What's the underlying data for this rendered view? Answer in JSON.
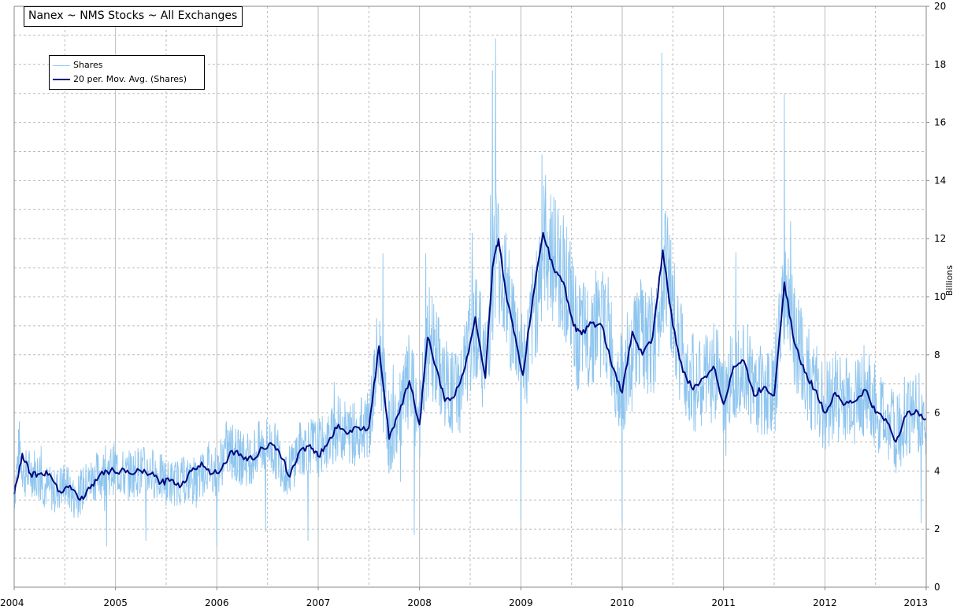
{
  "chart_data": {
    "type": "line",
    "title": "Nanex ~ NMS Stocks ~ All Exchanges",
    "ylabel": "Billions",
    "xlim": [
      2004,
      2013
    ],
    "ylim": [
      0,
      20
    ],
    "x_ticks": [
      "2004",
      "2005",
      "2006",
      "2007",
      "2008",
      "2009",
      "2010",
      "2011",
      "2012",
      "2013"
    ],
    "y_ticks": [
      "0",
      "2",
      "4",
      "6",
      "8",
      "10",
      "12",
      "14",
      "16",
      "18",
      "20"
    ],
    "grid": true,
    "legend_position": "top-left",
    "colors": {
      "shares": "#8EC5EE",
      "moving_average": "#000A80",
      "grid": "#BBBBBB"
    },
    "series": [
      {
        "name": "Shares",
        "style": "thin-noisy",
        "values": [
          [
            2004.0,
            3.2
          ],
          [
            2004.05,
            4.8
          ],
          [
            2004.1,
            3.9
          ],
          [
            2004.2,
            4.0
          ],
          [
            2004.3,
            3.5
          ],
          [
            2004.4,
            3.3
          ],
          [
            2004.5,
            3.6
          ],
          [
            2004.6,
            3.0
          ],
          [
            2004.7,
            3.5
          ],
          [
            2004.8,
            3.8
          ],
          [
            2004.9,
            4.0
          ],
          [
            2005.0,
            4.1
          ],
          [
            2005.1,
            3.8
          ],
          [
            2005.2,
            4.0
          ],
          [
            2005.3,
            4.0
          ],
          [
            2005.4,
            3.9
          ],
          [
            2005.5,
            3.6
          ],
          [
            2005.6,
            3.6
          ],
          [
            2005.7,
            3.7
          ],
          [
            2005.8,
            3.5
          ],
          [
            2005.9,
            4.2
          ],
          [
            2006.0,
            4.0
          ],
          [
            2006.1,
            4.8
          ],
          [
            2006.2,
            4.5
          ],
          [
            2006.3,
            4.4
          ],
          [
            2006.4,
            4.7
          ],
          [
            2006.5,
            4.9
          ],
          [
            2006.6,
            4.6
          ],
          [
            2006.7,
            3.9
          ],
          [
            2006.8,
            4.7
          ],
          [
            2006.9,
            4.9
          ],
          [
            2007.0,
            4.8
          ],
          [
            2007.1,
            5.0
          ],
          [
            2007.2,
            5.5
          ],
          [
            2007.3,
            5.3
          ],
          [
            2007.4,
            5.4
          ],
          [
            2007.5,
            5.6
          ],
          [
            2007.6,
            8.2
          ],
          [
            2007.7,
            5.2
          ],
          [
            2007.8,
            5.8
          ],
          [
            2007.9,
            7.1
          ],
          [
            2008.0,
            5.7
          ],
          [
            2008.1,
            8.6
          ],
          [
            2008.2,
            7.5
          ],
          [
            2008.3,
            6.6
          ],
          [
            2008.4,
            6.8
          ],
          [
            2008.5,
            8.3
          ],
          [
            2008.55,
            9.3
          ],
          [
            2008.65,
            7.5
          ],
          [
            2008.75,
            11.8
          ],
          [
            2008.85,
            10.2
          ],
          [
            2008.95,
            8.6
          ],
          [
            2009.05,
            7.6
          ],
          [
            2009.15,
            10.0
          ],
          [
            2009.25,
            12.0
          ],
          [
            2009.35,
            11.2
          ],
          [
            2009.45,
            10.6
          ],
          [
            2009.55,
            8.6
          ],
          [
            2009.65,
            8.6
          ],
          [
            2009.75,
            9.2
          ],
          [
            2009.85,
            9.0
          ],
          [
            2009.95,
            7.2
          ],
          [
            2010.05,
            6.9
          ],
          [
            2010.15,
            8.9
          ],
          [
            2010.25,
            8.2
          ],
          [
            2010.35,
            8.8
          ],
          [
            2010.42,
            11.6
          ],
          [
            2010.55,
            8.4
          ],
          [
            2010.65,
            7.4
          ],
          [
            2010.75,
            6.8
          ],
          [
            2010.85,
            7.2
          ],
          [
            2010.95,
            7.6
          ],
          [
            2011.0,
            6.3
          ],
          [
            2011.1,
            7.5
          ],
          [
            2011.2,
            8.0
          ],
          [
            2011.3,
            6.8
          ],
          [
            2011.4,
            6.9
          ],
          [
            2011.5,
            6.6
          ],
          [
            2011.6,
            10.5
          ],
          [
            2011.7,
            8.5
          ],
          [
            2011.8,
            7.5
          ],
          [
            2011.9,
            6.8
          ],
          [
            2012.0,
            6.2
          ],
          [
            2012.1,
            6.7
          ],
          [
            2012.2,
            6.4
          ],
          [
            2012.3,
            6.5
          ],
          [
            2012.4,
            6.8
          ],
          [
            2012.5,
            6.1
          ],
          [
            2012.6,
            5.8
          ],
          [
            2012.7,
            5.2
          ],
          [
            2012.8,
            5.9
          ],
          [
            2012.9,
            6.1
          ],
          [
            2013.0,
            5.8
          ]
        ],
        "spikes": [
          [
            2008.75,
            18.9
          ],
          [
            2008.72,
            17.8
          ],
          [
            2009.21,
            14.9
          ],
          [
            2010.39,
            18.4
          ],
          [
            2011.6,
            17.0
          ],
          [
            2011.66,
            12.6
          ],
          [
            2007.64,
            11.5
          ],
          [
            2008.06,
            11.5
          ],
          [
            2008.52,
            12.2
          ],
          [
            2010.0,
            12.1
          ],
          [
            2009.0,
            2.3
          ],
          [
            2010.0,
            2.2
          ],
          [
            2004.91,
            1.4
          ],
          [
            2005.3,
            1.6
          ],
          [
            2006.0,
            1.4
          ],
          [
            2006.48,
            1.9
          ],
          [
            2006.9,
            1.6
          ],
          [
            2007.95,
            1.8
          ],
          [
            2012.95,
            2.2
          ]
        ]
      },
      {
        "name": "20 per. Mov. Avg. (Shares)",
        "style": "thick",
        "values": [
          [
            2004.0,
            3.2
          ],
          [
            2004.08,
            4.6
          ],
          [
            2004.16,
            3.9
          ],
          [
            2004.25,
            3.9
          ],
          [
            2004.35,
            3.9
          ],
          [
            2004.45,
            3.3
          ],
          [
            2004.55,
            3.5
          ],
          [
            2004.65,
            3.0
          ],
          [
            2004.75,
            3.4
          ],
          [
            2004.85,
            3.9
          ],
          [
            2004.95,
            4.0
          ],
          [
            2005.05,
            4.0
          ],
          [
            2005.15,
            3.9
          ],
          [
            2005.25,
            4.0
          ],
          [
            2005.35,
            3.9
          ],
          [
            2005.45,
            3.6
          ],
          [
            2005.55,
            3.7
          ],
          [
            2005.65,
            3.5
          ],
          [
            2005.75,
            4.0
          ],
          [
            2005.85,
            4.3
          ],
          [
            2005.95,
            3.9
          ],
          [
            2006.05,
            4.1
          ],
          [
            2006.15,
            4.7
          ],
          [
            2006.25,
            4.5
          ],
          [
            2006.35,
            4.4
          ],
          [
            2006.45,
            4.8
          ],
          [
            2006.55,
            4.9
          ],
          [
            2006.65,
            4.4
          ],
          [
            2006.72,
            3.8
          ],
          [
            2006.82,
            4.7
          ],
          [
            2006.92,
            4.9
          ],
          [
            2007.0,
            4.5
          ],
          [
            2007.1,
            5.0
          ],
          [
            2007.2,
            5.6
          ],
          [
            2007.3,
            5.3
          ],
          [
            2007.4,
            5.5
          ],
          [
            2007.5,
            5.5
          ],
          [
            2007.6,
            8.3
          ],
          [
            2007.7,
            5.1
          ],
          [
            2007.8,
            6.0
          ],
          [
            2007.9,
            7.1
          ],
          [
            2008.0,
            5.6
          ],
          [
            2008.08,
            8.6
          ],
          [
            2008.18,
            7.4
          ],
          [
            2008.25,
            6.4
          ],
          [
            2008.35,
            6.6
          ],
          [
            2008.45,
            7.6
          ],
          [
            2008.55,
            9.3
          ],
          [
            2008.65,
            7.2
          ],
          [
            2008.72,
            11.0
          ],
          [
            2008.78,
            12.0
          ],
          [
            2008.85,
            10.2
          ],
          [
            2008.93,
            8.8
          ],
          [
            2009.02,
            7.3
          ],
          [
            2009.12,
            10.0
          ],
          [
            2009.22,
            12.2
          ],
          [
            2009.32,
            11.0
          ],
          [
            2009.42,
            10.5
          ],
          [
            2009.52,
            9.0
          ],
          [
            2009.6,
            8.7
          ],
          [
            2009.7,
            9.1
          ],
          [
            2009.8,
            9.0
          ],
          [
            2009.9,
            7.6
          ],
          [
            2010.0,
            6.7
          ],
          [
            2010.1,
            8.8
          ],
          [
            2010.2,
            8.0
          ],
          [
            2010.3,
            8.6
          ],
          [
            2010.4,
            11.6
          ],
          [
            2010.5,
            9.0
          ],
          [
            2010.6,
            7.4
          ],
          [
            2010.7,
            6.8
          ],
          [
            2010.8,
            7.2
          ],
          [
            2010.9,
            7.6
          ],
          [
            2011.0,
            6.3
          ],
          [
            2011.1,
            7.6
          ],
          [
            2011.2,
            7.8
          ],
          [
            2011.3,
            6.6
          ],
          [
            2011.4,
            6.9
          ],
          [
            2011.5,
            6.6
          ],
          [
            2011.6,
            10.5
          ],
          [
            2011.7,
            8.4
          ],
          [
            2011.8,
            7.4
          ],
          [
            2011.9,
            6.8
          ],
          [
            2012.0,
            6.0
          ],
          [
            2012.1,
            6.7
          ],
          [
            2012.2,
            6.3
          ],
          [
            2012.3,
            6.4
          ],
          [
            2012.4,
            6.8
          ],
          [
            2012.5,
            6.0
          ],
          [
            2012.6,
            5.8
          ],
          [
            2012.7,
            5.0
          ],
          [
            2012.8,
            5.9
          ],
          [
            2012.9,
            6.1
          ],
          [
            2013.0,
            5.8
          ]
        ]
      }
    ]
  }
}
